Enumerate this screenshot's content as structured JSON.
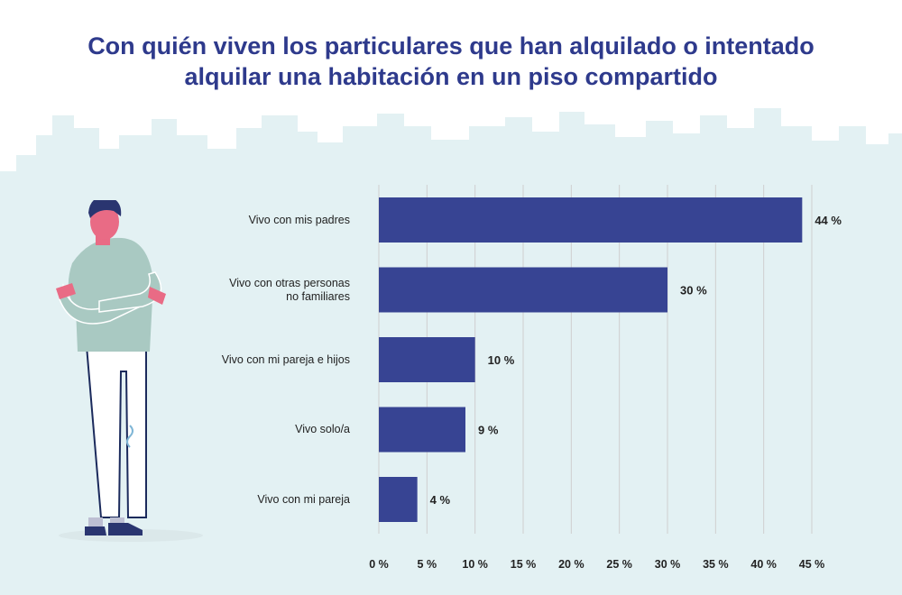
{
  "page": {
    "title_lines": [
      "Con quién viven los particulares  que han alquilado o intentado",
      "alquilar una habitación en un piso compartido"
    ]
  },
  "colors": {
    "title": "#2e3a8c",
    "bar": "#374493",
    "skyline": "#e3f1f3",
    "grid": "#cfcfcf",
    "text": "#222222"
  },
  "chart_data": {
    "type": "bar",
    "orientation": "horizontal",
    "title": "Con quién viven los particulares  que han alquilado o intentado alquilar una habitación en un piso compartido",
    "categories": [
      [
        "Vivo con mis padres"
      ],
      [
        "Vivo con otras personas",
        "no familiares"
      ],
      [
        "Vivo con mi pareja e hijos"
      ],
      [
        "Vivo solo/a"
      ],
      [
        "Vivo con mi pareja"
      ]
    ],
    "values": [
      44,
      30,
      10,
      9,
      4
    ],
    "value_labels": [
      "44 %",
      "30 %",
      "10 %",
      "9 %",
      "4 %"
    ],
    "xlim": [
      0,
      45
    ],
    "xticks": [
      0,
      5,
      10,
      15,
      20,
      25,
      30,
      35,
      40,
      45
    ],
    "xtick_labels": [
      "0 %",
      "5 %",
      "10 %",
      "15 %",
      "20 %",
      "25 %",
      "30 %",
      "35 %",
      "40 %",
      "45 %"
    ],
    "grid": "vertical",
    "legend": "none"
  }
}
